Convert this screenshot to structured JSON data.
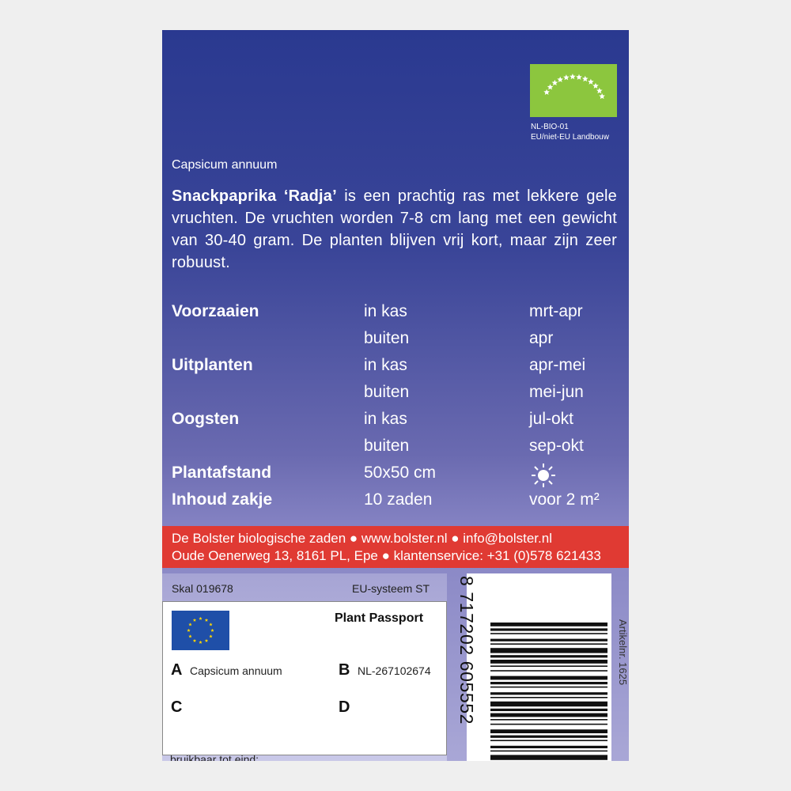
{
  "organic_logo": {
    "code": "NL-BIO-01",
    "origin": "EU/niet-EU Landbouw"
  },
  "botanical_name": "Capsicum annuum",
  "description": {
    "name": "Snackpaprika ‘Radja’",
    "text": " is een prachtig ras met lekkere gele vruchten. De vruchten worden 7-8 cm lang met een gewicht van 30-40 gram. De planten blijven vrij kort, maar zijn zeer robuust."
  },
  "schedule": [
    {
      "label": "Voorzaaien",
      "lines": [
        [
          "in kas",
          "mrt-apr"
        ],
        [
          "buiten",
          "apr"
        ]
      ]
    },
    {
      "label": "Uitplanten",
      "lines": [
        [
          "in kas",
          "apr-mei"
        ],
        [
          "buiten",
          "mei-jun"
        ]
      ]
    },
    {
      "label": "Oogsten",
      "lines": [
        [
          "in kas",
          "jul-okt"
        ],
        [
          "buiten",
          "sep-okt"
        ]
      ]
    },
    {
      "label": "Plantafstand",
      "lines": [
        [
          "50x50 cm"
        ]
      ]
    },
    {
      "label": "Inhoud zakje",
      "lines": [
        [
          "10 zaden",
          "voor 2 m²"
        ]
      ]
    }
  ],
  "contact": {
    "line1": "De Bolster biologische zaden ● www.bolster.nl ● info@bolster.nl",
    "line2": "Oude Oenerweg 13, 8161 PL, Epe ● klantenservice: +31 (0)578 621433"
  },
  "certification": {
    "skal": "Skal 019678",
    "system": "EU-systeem ST"
  },
  "passport": {
    "title": "Plant Passport",
    "fields": [
      {
        "key": "A",
        "value": "Capsicum annuum"
      },
      {
        "key": "B",
        "value": "NL-267102674"
      },
      {
        "key": "C"
      },
      {
        "key": "D"
      }
    ]
  },
  "best_before": "bruikbaar tot eind:",
  "barcode": "8 717202 605552",
  "article": "Artikelnr. 1625"
}
